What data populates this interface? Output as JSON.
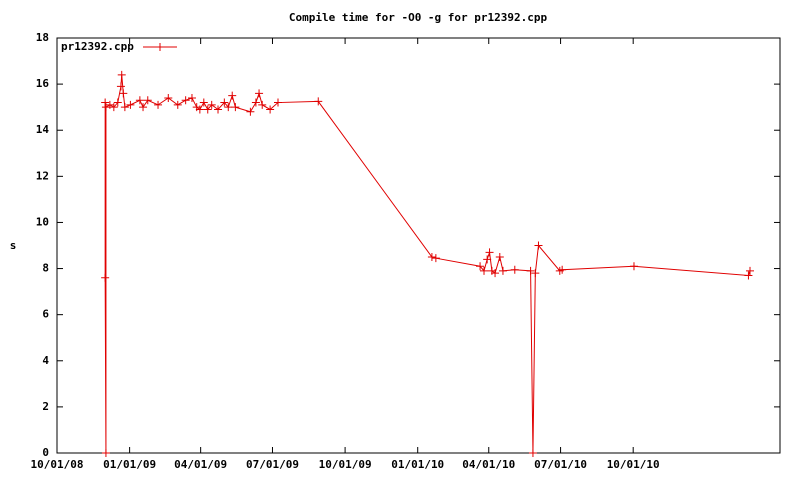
{
  "chart_data": {
    "type": "line",
    "title": "Compile time for -O0 -g for pr12392.cpp",
    "y_label": "s",
    "x": [
      "2008-12-01",
      "2008-12-01",
      "2008-12-02",
      "2008-12-02",
      "2008-12-07",
      "2008-12-12",
      "2008-12-17",
      "2008-12-21",
      "2008-12-22",
      "2008-12-24",
      "2008-12-26",
      "2009-01-02",
      "2009-01-14",
      "2009-01-18",
      "2009-01-24",
      "2009-02-06",
      "2009-02-19",
      "2009-03-03",
      "2009-03-13",
      "2009-03-21",
      "2009-03-27",
      "2009-03-31",
      "2009-04-05",
      "2009-04-10",
      "2009-04-15",
      "2009-04-23",
      "2009-05-01",
      "2009-05-06",
      "2009-05-11",
      "2009-05-15",
      "2009-06-03",
      "2009-06-10",
      "2009-06-14",
      "2009-06-18",
      "2009-06-28",
      "2009-07-08",
      "2009-08-28",
      "2010-01-19",
      "2010-01-24",
      "2010-03-21",
      "2010-03-26",
      "2010-03-30",
      "2010-04-02",
      "2010-04-05",
      "2010-04-09",
      "2010-04-15",
      "2010-04-19",
      "2010-05-04",
      "2010-05-24",
      "2010-05-27",
      "2010-05-30",
      "2010-06-03",
      "2010-06-30",
      "2010-07-03",
      "2010-10-02",
      "2011-02-24",
      "2011-02-26"
    ],
    "series": [
      {
        "name": "pr12392.cpp",
        "color": "#e00000",
        "values": [
          15.2,
          7.6,
          0,
          15.0,
          15.1,
          15.0,
          15.2,
          15.9,
          16.4,
          15.6,
          15.0,
          15.1,
          15.3,
          15.0,
          15.3,
          15.1,
          15.4,
          15.1,
          15.3,
          15.4,
          15.0,
          14.9,
          15.2,
          14.9,
          15.1,
          14.9,
          15.2,
          15.0,
          15.5,
          15.0,
          14.8,
          15.2,
          15.6,
          15.1,
          14.9,
          15.2,
          15.25,
          8.5,
          8.45,
          8.1,
          7.9,
          8.4,
          8.7,
          7.9,
          7.8,
          8.5,
          7.9,
          7.95,
          7.9,
          0,
          7.8,
          9.0,
          7.9,
          7.95,
          8.1,
          7.7,
          7.9
        ]
      }
    ],
    "xlim": [
      "2008-10-01",
      "2011-04-05"
    ],
    "xticks": [
      {
        "value": "2008-10-01",
        "label": "10/01/08"
      },
      {
        "value": "2009-01-01",
        "label": "01/01/09"
      },
      {
        "value": "2009-04-01",
        "label": "04/01/09"
      },
      {
        "value": "2009-07-01",
        "label": "07/01/09"
      },
      {
        "value": "2009-10-01",
        "label": "10/01/09"
      },
      {
        "value": "2010-01-01",
        "label": "01/01/10"
      },
      {
        "value": "2010-04-01",
        "label": "04/01/10"
      },
      {
        "value": "2010-07-01",
        "label": "07/01/10"
      },
      {
        "value": "2010-10-01",
        "label": "10/01/10"
      }
    ],
    "ylim": [
      0,
      18
    ],
    "yticks": [
      0,
      2,
      4,
      6,
      8,
      10,
      12,
      14,
      16,
      18
    ],
    "legend": "top-left"
  }
}
